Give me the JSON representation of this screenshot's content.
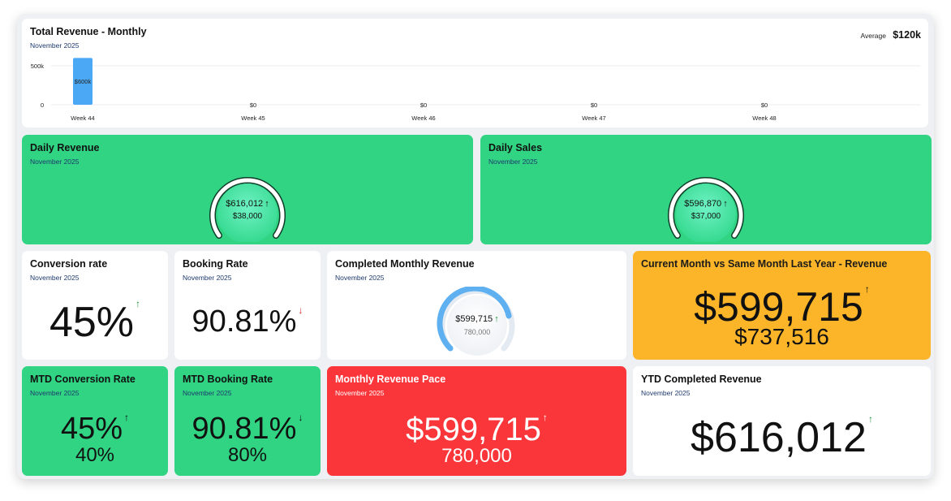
{
  "revenue_chart": {
    "title": "Total Revenue - Monthly",
    "subtitle": "November 2025",
    "average_label": "Average",
    "average_value": "$120k",
    "y_ticks": [
      "500k",
      "0"
    ],
    "colors": {
      "bar": "#4aa8f5"
    },
    "chart_data": {
      "type": "bar",
      "categories": [
        "Week 44",
        "Week 45",
        "Week 46",
        "Week 47",
        "Week 48"
      ],
      "values": [
        600000,
        0,
        0,
        0,
        0
      ],
      "data_labels": [
        "$600k",
        "$0",
        "$0",
        "$0",
        "$0"
      ],
      "ylim": [
        0,
        500000
      ],
      "grid": true
    }
  },
  "daily_revenue": {
    "title": "Daily Revenue",
    "subtitle": "November 2025",
    "value": "$616,012",
    "target": "$38,000",
    "arrow": "↑"
  },
  "daily_sales": {
    "title": "Daily Sales",
    "subtitle": "November 2025",
    "value": "$596,870",
    "target": "$37,000",
    "arrow": "↑"
  },
  "conversion_rate": {
    "title": "Conversion rate",
    "subtitle": "November 2025",
    "value": "45%",
    "arrow": "↑"
  },
  "booking_rate": {
    "title": "Booking Rate",
    "subtitle": "November 2025",
    "value": "90.81%",
    "arrow": "↓"
  },
  "completed_monthly_revenue": {
    "title": "Completed Monthly Revenue",
    "subtitle": "November 2025",
    "value": "$599,715",
    "target": "780,000",
    "arrow": "↑"
  },
  "current_vs_last_year": {
    "title": "Current Month vs Same Month Last Year - Revenue",
    "value": "$599,715",
    "comparison": "$737,516",
    "arrow": "↑"
  },
  "mtd_conversion_rate": {
    "title": "MTD Conversion Rate",
    "subtitle": "November 2025",
    "value": "45%",
    "target": "40%",
    "arrow": "↑"
  },
  "mtd_booking_rate": {
    "title": "MTD Booking Rate",
    "subtitle": "November 2025",
    "value": "90.81%",
    "target": "80%",
    "arrow": "↓"
  },
  "monthly_revenue_pace": {
    "title": "Monthly Revenue Pace",
    "subtitle": "November 2025",
    "value": "$599,715",
    "target": "780,000",
    "arrow": "↑"
  },
  "ytd_completed_revenue": {
    "title": "YTD Completed Revenue",
    "subtitle": "November 2025",
    "value": "$616,012",
    "arrow": "↑"
  }
}
